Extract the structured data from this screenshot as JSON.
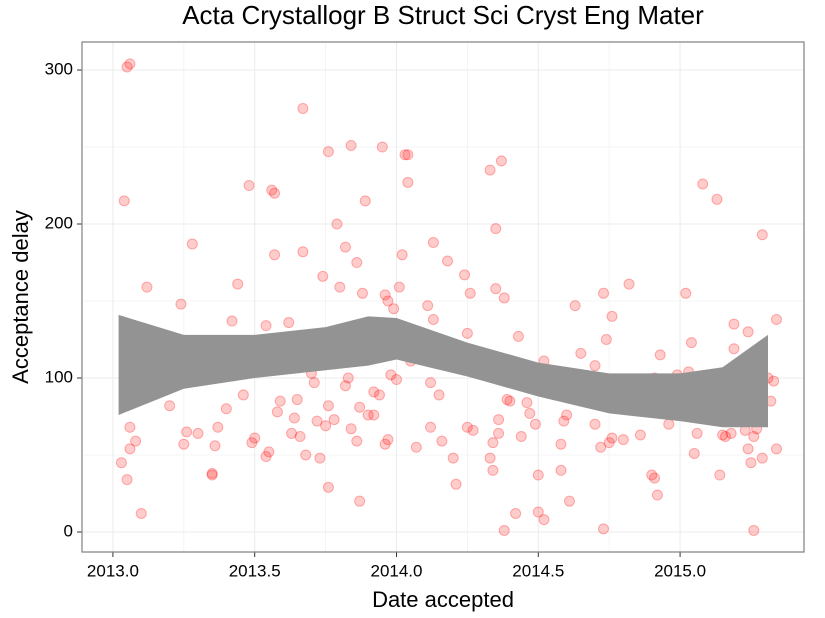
{
  "chart_data": {
    "type": "scatter",
    "title": "Acta Crystallogr B Struct Sci Cryst Eng Mater",
    "x_label": "Date accepted",
    "y_label": "Acceptance delay",
    "xlim": [
      2012.891,
      2015.437
    ],
    "ylim": [
      -13,
      318.2
    ],
    "xticks": [
      {
        "value": 2013,
        "label": "2013.0"
      },
      {
        "value": 2013.5,
        "label": "2013.5"
      },
      {
        "value": 2014,
        "label": "2014.0"
      },
      {
        "value": 2014.5,
        "label": "2014.5"
      },
      {
        "value": 2015,
        "label": "2015.0"
      }
    ],
    "yticks": [
      0,
      100,
      200,
      300
    ],
    "grid": true,
    "color": "#ff0000",
    "x": [
      2013.04,
      2013.03,
      2013.05,
      2013.07,
      2013.05,
      2013.06,
      2013.06,
      2013.06,
      2013.06,
      2013.08,
      2013.1,
      2013.12,
      2013.12,
      2013.2,
      2013.22,
      2013.24,
      2013.25,
      2013.26,
      2013.28,
      2013.3,
      2013.33,
      2013.34,
      2013.35,
      2013.35,
      2013.36,
      2013.37,
      2013.39,
      2013.4,
      2013.42,
      2013.44,
      2013.46,
      2013.48,
      2013.49,
      2013.5,
      2013.54,
      2013.54,
      2013.55,
      2013.56,
      2013.57,
      2013.57,
      2013.58,
      2013.59,
      2013.62,
      2013.63,
      2013.64,
      2013.65,
      2013.66,
      2013.67,
      2013.67,
      2013.68,
      2013.7,
      2013.71,
      2013.72,
      2013.73,
      2013.74,
      2013.75,
      2013.76,
      2013.76,
      2013.76,
      2013.78,
      2013.79,
      2013.8,
      2013.82,
      2013.82,
      2013.83,
      2013.84,
      2013.84,
      2013.85,
      2013.86,
      2013.86,
      2013.87,
      2013.87,
      2013.88,
      2013.88,
      2013.89,
      2013.9,
      2013.91,
      2013.92,
      2013.92,
      2013.93,
      2013.94,
      2013.95,
      2013.96,
      2013.96,
      2013.97,
      2013.97,
      2013.98,
      2013.98,
      2013.99,
      2014.0,
      2014.01,
      2014.02,
      2014.03,
      2014.04,
      2014.04,
      2014.05,
      2014.07,
      2014.1,
      2014.11,
      2014.12,
      2014.12,
      2014.13,
      2014.13,
      2014.15,
      2014.16,
      2014.18,
      2014.2,
      2014.21,
      2014.22,
      2014.24,
      2014.25,
      2014.25,
      2014.26,
      2014.27,
      2014.3,
      2014.33,
      2014.33,
      2014.34,
      2014.34,
      2014.35,
      2014.35,
      2014.36,
      2014.36,
      2014.37,
      2014.38,
      2014.38,
      2014.39,
      2014.4,
      2014.42,
      2014.43,
      2014.44,
      2014.45,
      2014.46,
      2014.47,
      2014.49,
      2014.5,
      2014.5,
      2014.52,
      2014.52,
      2014.56,
      2014.58,
      2014.58,
      2014.59,
      2014.6,
      2014.61,
      2014.63,
      2014.65,
      2014.67,
      2014.7,
      2014.7,
      2014.72,
      2014.73,
      2014.73,
      2014.74,
      2014.74,
      2014.75,
      2014.76,
      2014.76,
      2014.8,
      2014.82,
      2014.86,
      2014.9,
      2014.91,
      2014.91,
      2014.92,
      2014.93,
      2014.96,
      2014.99,
      2015.02,
      2015.03,
      2015.04,
      2015.05,
      2015.06,
      2015.08,
      2015.1,
      2015.1,
      2015.13,
      2015.14,
      2015.15,
      2015.16,
      2015.17,
      2015.18,
      2015.19,
      2015.19,
      2015.23,
      2015.24,
      2015.24,
      2015.25,
      2015.26,
      2015.26,
      2015.27,
      2015.27,
      2015.29,
      2015.29,
      2015.31,
      2015.32,
      2015.33,
      2015.34,
      2015.34
    ],
    "values": [
      215,
      45,
      34,
      104,
      302,
      304,
      68,
      83,
      54,
      59,
      12,
      159,
      126,
      82,
      119,
      148,
      57,
      65,
      187,
      64,
      101,
      104,
      37,
      38,
      56,
      68,
      112,
      80,
      137,
      161,
      89,
      225,
      58,
      61,
      134,
      49,
      52,
      222,
      220,
      180,
      78,
      85,
      136,
      64,
      74,
      86,
      62,
      275,
      182,
      50,
      103,
      97,
      72,
      48,
      166,
      69,
      82,
      247,
      29,
      73,
      200,
      159,
      95,
      185,
      100,
      251,
      67,
      134,
      175,
      59,
      20,
      81,
      155,
      130,
      215,
      76,
      135,
      76,
      91,
      136,
      89,
      250,
      57,
      154,
      150,
      60,
      130,
      102,
      145,
      99,
      159,
      180,
      245,
      245,
      227,
      111,
      55,
      114,
      147,
      68,
      97,
      138,
      188,
      89,
      59,
      176,
      48,
      31,
      108,
      167,
      129,
      68,
      155,
      66,
      115,
      235,
      48,
      58,
      40,
      197,
      158,
      64,
      73,
      241,
      152,
      1,
      86,
      85,
      12,
      127,
      62,
      97,
      84,
      77,
      70,
      37,
      13,
      8,
      111,
      94,
      40,
      57,
      72,
      76,
      20,
      147,
      116,
      99,
      108,
      70,
      55,
      2,
      155,
      98,
      125,
      58,
      61,
      140,
      60,
      161,
      63,
      37,
      100,
      35,
      24,
      115,
      70,
      102,
      155,
      104,
      123,
      51,
      64,
      226,
      78,
      91,
      216,
      37,
      63,
      62,
      91,
      64,
      135,
      119,
      66,
      130,
      54,
      45,
      62,
      1,
      97,
      67,
      193,
      48,
      100,
      85,
      98,
      54,
      138
    ],
    "band": {
      "color": "#939393",
      "x": [
        2013.02,
        2013.25,
        2013.5,
        2013.75,
        2013.9,
        2014.0,
        2014.25,
        2014.5,
        2014.75,
        2015.0,
        2015.15,
        2015.31
      ],
      "upper": [
        141,
        128,
        128,
        133,
        140,
        139,
        123,
        110,
        103,
        103,
        107,
        128
      ],
      "lower": [
        76,
        93,
        100,
        105,
        108,
        112,
        101,
        88,
        77,
        72,
        68,
        68
      ]
    }
  }
}
